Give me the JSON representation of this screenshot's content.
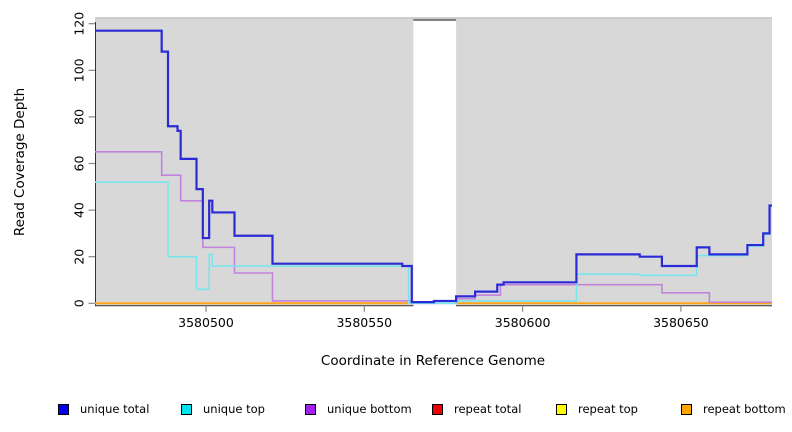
{
  "chart_data": {
    "type": "line",
    "subtype": "step-coverage",
    "title": "",
    "xlabel": "Coordinate in Reference Genome",
    "ylabel": "Read Coverage Depth",
    "xlim": [
      3580465,
      3580679
    ],
    "ylim": [
      0,
      120
    ],
    "x_ticks": [
      3580500,
      3580550,
      3580600,
      3580650
    ],
    "y_ticks": [
      0,
      20,
      40,
      60,
      80,
      100,
      120
    ],
    "grid": false,
    "panel_bg": "#D8D8D8",
    "panel_top_border": "#C3C3C3",
    "gap_region": {
      "x_start": 3580565.5,
      "x_end": 3580579,
      "fill": "#FFFFFF",
      "border_top": "#7F7F7F"
    },
    "legend_position": "bottom",
    "series": [
      {
        "name": "unique total",
        "color": "#2B2BD6",
        "legend_color": "#0000EE",
        "width": 2.2,
        "points": [
          [
            3580465,
            117
          ],
          [
            3580486,
            108
          ],
          [
            3580488,
            76
          ],
          [
            3580491,
            74
          ],
          [
            3580492,
            62
          ],
          [
            3580497,
            49
          ],
          [
            3580499,
            28
          ],
          [
            3580501,
            44
          ],
          [
            3580502,
            39
          ],
          [
            3580509,
            29
          ],
          [
            3580521,
            17
          ],
          [
            3580562,
            16
          ],
          [
            3580565,
            0.5
          ],
          [
            3580572,
            1
          ],
          [
            3580579,
            3
          ],
          [
            3580585,
            5
          ],
          [
            3580592,
            8
          ],
          [
            3580594,
            9
          ],
          [
            3580617,
            21
          ],
          [
            3580637,
            20
          ],
          [
            3580644,
            16
          ],
          [
            3580655,
            24
          ],
          [
            3580659,
            21
          ],
          [
            3580671,
            25
          ],
          [
            3580676,
            30
          ],
          [
            3580678,
            42
          ]
        ]
      },
      {
        "name": "unique top",
        "color": "#79E6EE",
        "legend_color": "#00E5EE",
        "width": 1.6,
        "points": [
          [
            3580465,
            52
          ],
          [
            3580488,
            20
          ],
          [
            3580497,
            6
          ],
          [
            3580501,
            21
          ],
          [
            3580502,
            16
          ],
          [
            3580564,
            0
          ],
          [
            3580579,
            1
          ],
          [
            3580617,
            12.5
          ],
          [
            3580637,
            12
          ],
          [
            3580655,
            20.5
          ],
          [
            3580671,
            24.5
          ],
          [
            3580676,
            29.5
          ],
          [
            3580678,
            41.5
          ]
        ]
      },
      {
        "name": "unique bottom",
        "color": "#C183DE",
        "legend_color": "#A020F0",
        "width": 1.6,
        "points": [
          [
            3580465,
            65
          ],
          [
            3580486,
            55
          ],
          [
            3580492,
            44
          ],
          [
            3580499,
            24
          ],
          [
            3580509,
            13
          ],
          [
            3580521,
            1
          ],
          [
            3580565,
            0
          ],
          [
            3580579,
            2
          ],
          [
            3580585,
            3.5
          ],
          [
            3580593,
            8
          ],
          [
            3580644,
            4.5
          ],
          [
            3580659,
            0.5
          ]
        ]
      },
      {
        "name": "repeat total",
        "color": "#DD2233",
        "legend_color": "#EE0000",
        "width": 1.4,
        "points": [
          [
            3580465,
            0
          ]
        ],
        "interrupted_by_gap": true
      },
      {
        "name": "repeat top",
        "color": "#FFFF00",
        "legend_color": "#FFFF00",
        "width": 1.4,
        "points": [
          [
            3580465,
            0
          ]
        ],
        "interrupted_by_gap": true
      },
      {
        "name": "repeat bottom",
        "color": "#FFA418",
        "legend_color": "#FFA500",
        "width": 2,
        "points": [
          [
            3580465,
            0
          ]
        ],
        "interrupted_by_gap": true
      }
    ]
  }
}
